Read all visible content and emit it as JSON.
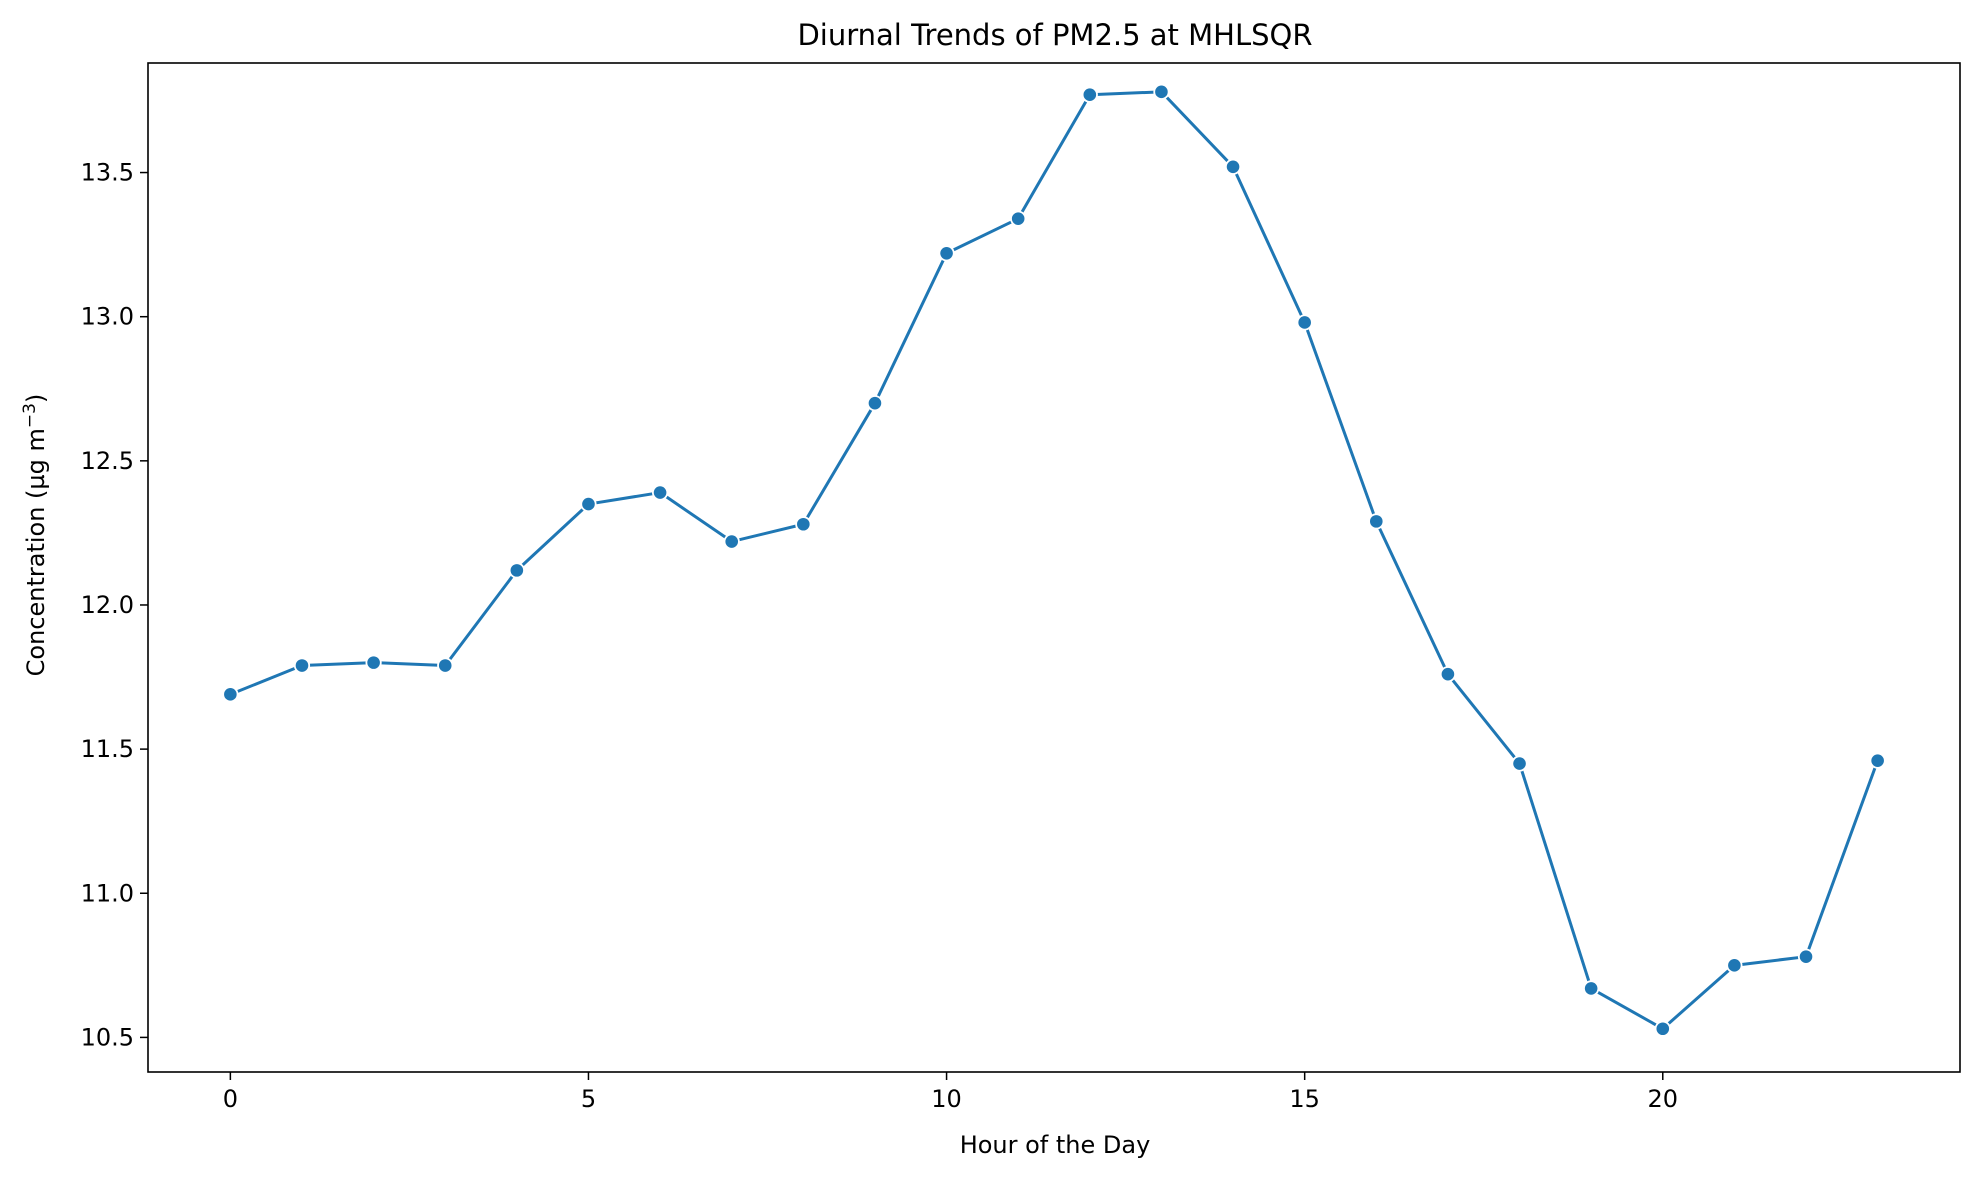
{
  "chart_data": {
    "type": "line",
    "title": "Diurnal Trends of PM2.5 at MHLSQR",
    "xlabel": "Hour of the Day",
    "ylabel": "Concentration (µg m",
    "ylabel_unit_sup": "−3",
    "ylabel_close": ")",
    "x": [
      0,
      1,
      2,
      3,
      4,
      5,
      6,
      7,
      8,
      9,
      10,
      11,
      12,
      13,
      14,
      15,
      16,
      17,
      18,
      19,
      20,
      21,
      22,
      23
    ],
    "series": [
      {
        "values": [
          11.69,
          11.79,
          11.8,
          11.79,
          12.12,
          12.35,
          12.39,
          12.22,
          12.28,
          12.7,
          13.22,
          13.34,
          13.77,
          13.78,
          13.52,
          12.98,
          12.29,
          11.76,
          11.45,
          10.67,
          10.53,
          10.75,
          10.78,
          11.46
        ],
        "color": "#1f77b4",
        "marker": "circle"
      }
    ],
    "xlim": [
      -1.15,
      24.15
    ],
    "ylim": [
      10.38,
      13.88
    ],
    "xticks": [
      0,
      5,
      10,
      15,
      20
    ],
    "xtick_labels": [
      "0",
      "5",
      "10",
      "15",
      "20"
    ],
    "yticks": [
      10.5,
      11.0,
      11.5,
      12.0,
      12.5,
      13.0,
      13.5
    ],
    "ytick_labels": [
      "10.5",
      "11.0",
      "11.5",
      "12.0",
      "12.5",
      "13.0",
      "13.5"
    ],
    "grid": false,
    "legend": false
  }
}
